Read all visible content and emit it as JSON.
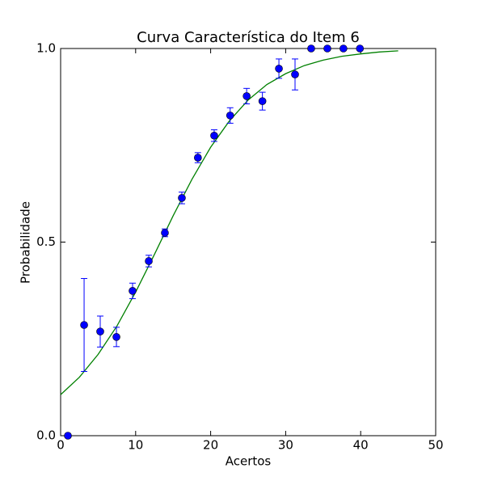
{
  "chart_data": {
    "type": "scatter",
    "title": "Curva Característica do Item 6",
    "x_label": "Acertos",
    "y_label": "Probabilidade",
    "xlim": [
      0,
      50
    ],
    "xticks": [
      0,
      10,
      20,
      30,
      40,
      50
    ],
    "ylim": [
      0,
      1
    ],
    "yticks": [
      {
        "value": 0,
        "label": "0.0"
      },
      {
        "value": 0.5,
        "label": "0.5"
      },
      {
        "value": 1,
        "label": "1.0"
      }
    ],
    "grid": false,
    "points": {
      "color": "#0000ff",
      "x": [
        0.97,
        3.13,
        5.28,
        7.44,
        9.59,
        11.75,
        13.9,
        16.16,
        18.3,
        20.47,
        22.6,
        24.8,
        26.9,
        29.1,
        31.25,
        33.4,
        35.56,
        37.7,
        39.9
      ],
      "values": [
        0.0,
        0.286,
        0.269,
        0.255,
        0.374,
        0.451,
        0.524,
        0.614,
        0.718,
        0.775,
        0.827,
        0.877,
        0.864,
        0.948,
        0.933,
        1.0,
        1.0,
        1.0,
        1.0
      ],
      "errors": [
        0,
        0.12,
        0.04,
        0.025,
        0.02,
        0.015,
        0.01,
        0.015,
        0.013,
        0.015,
        0.02,
        0.02,
        0.023,
        0.025,
        0.04,
        0,
        0,
        0,
        0
      ]
    },
    "curve": {
      "color": "#008000",
      "x": [
        0,
        2.5,
        5,
        7.5,
        10,
        12.5,
        15,
        17.5,
        20,
        22.5,
        25,
        27.5,
        30,
        32.5,
        35,
        37.5,
        40,
        42.5,
        45
      ],
      "values": [
        0.106,
        0.151,
        0.21,
        0.283,
        0.371,
        0.468,
        0.568,
        0.662,
        0.745,
        0.813,
        0.867,
        0.907,
        0.935,
        0.956,
        0.97,
        0.98,
        0.986,
        0.991,
        0.994
      ]
    }
  }
}
